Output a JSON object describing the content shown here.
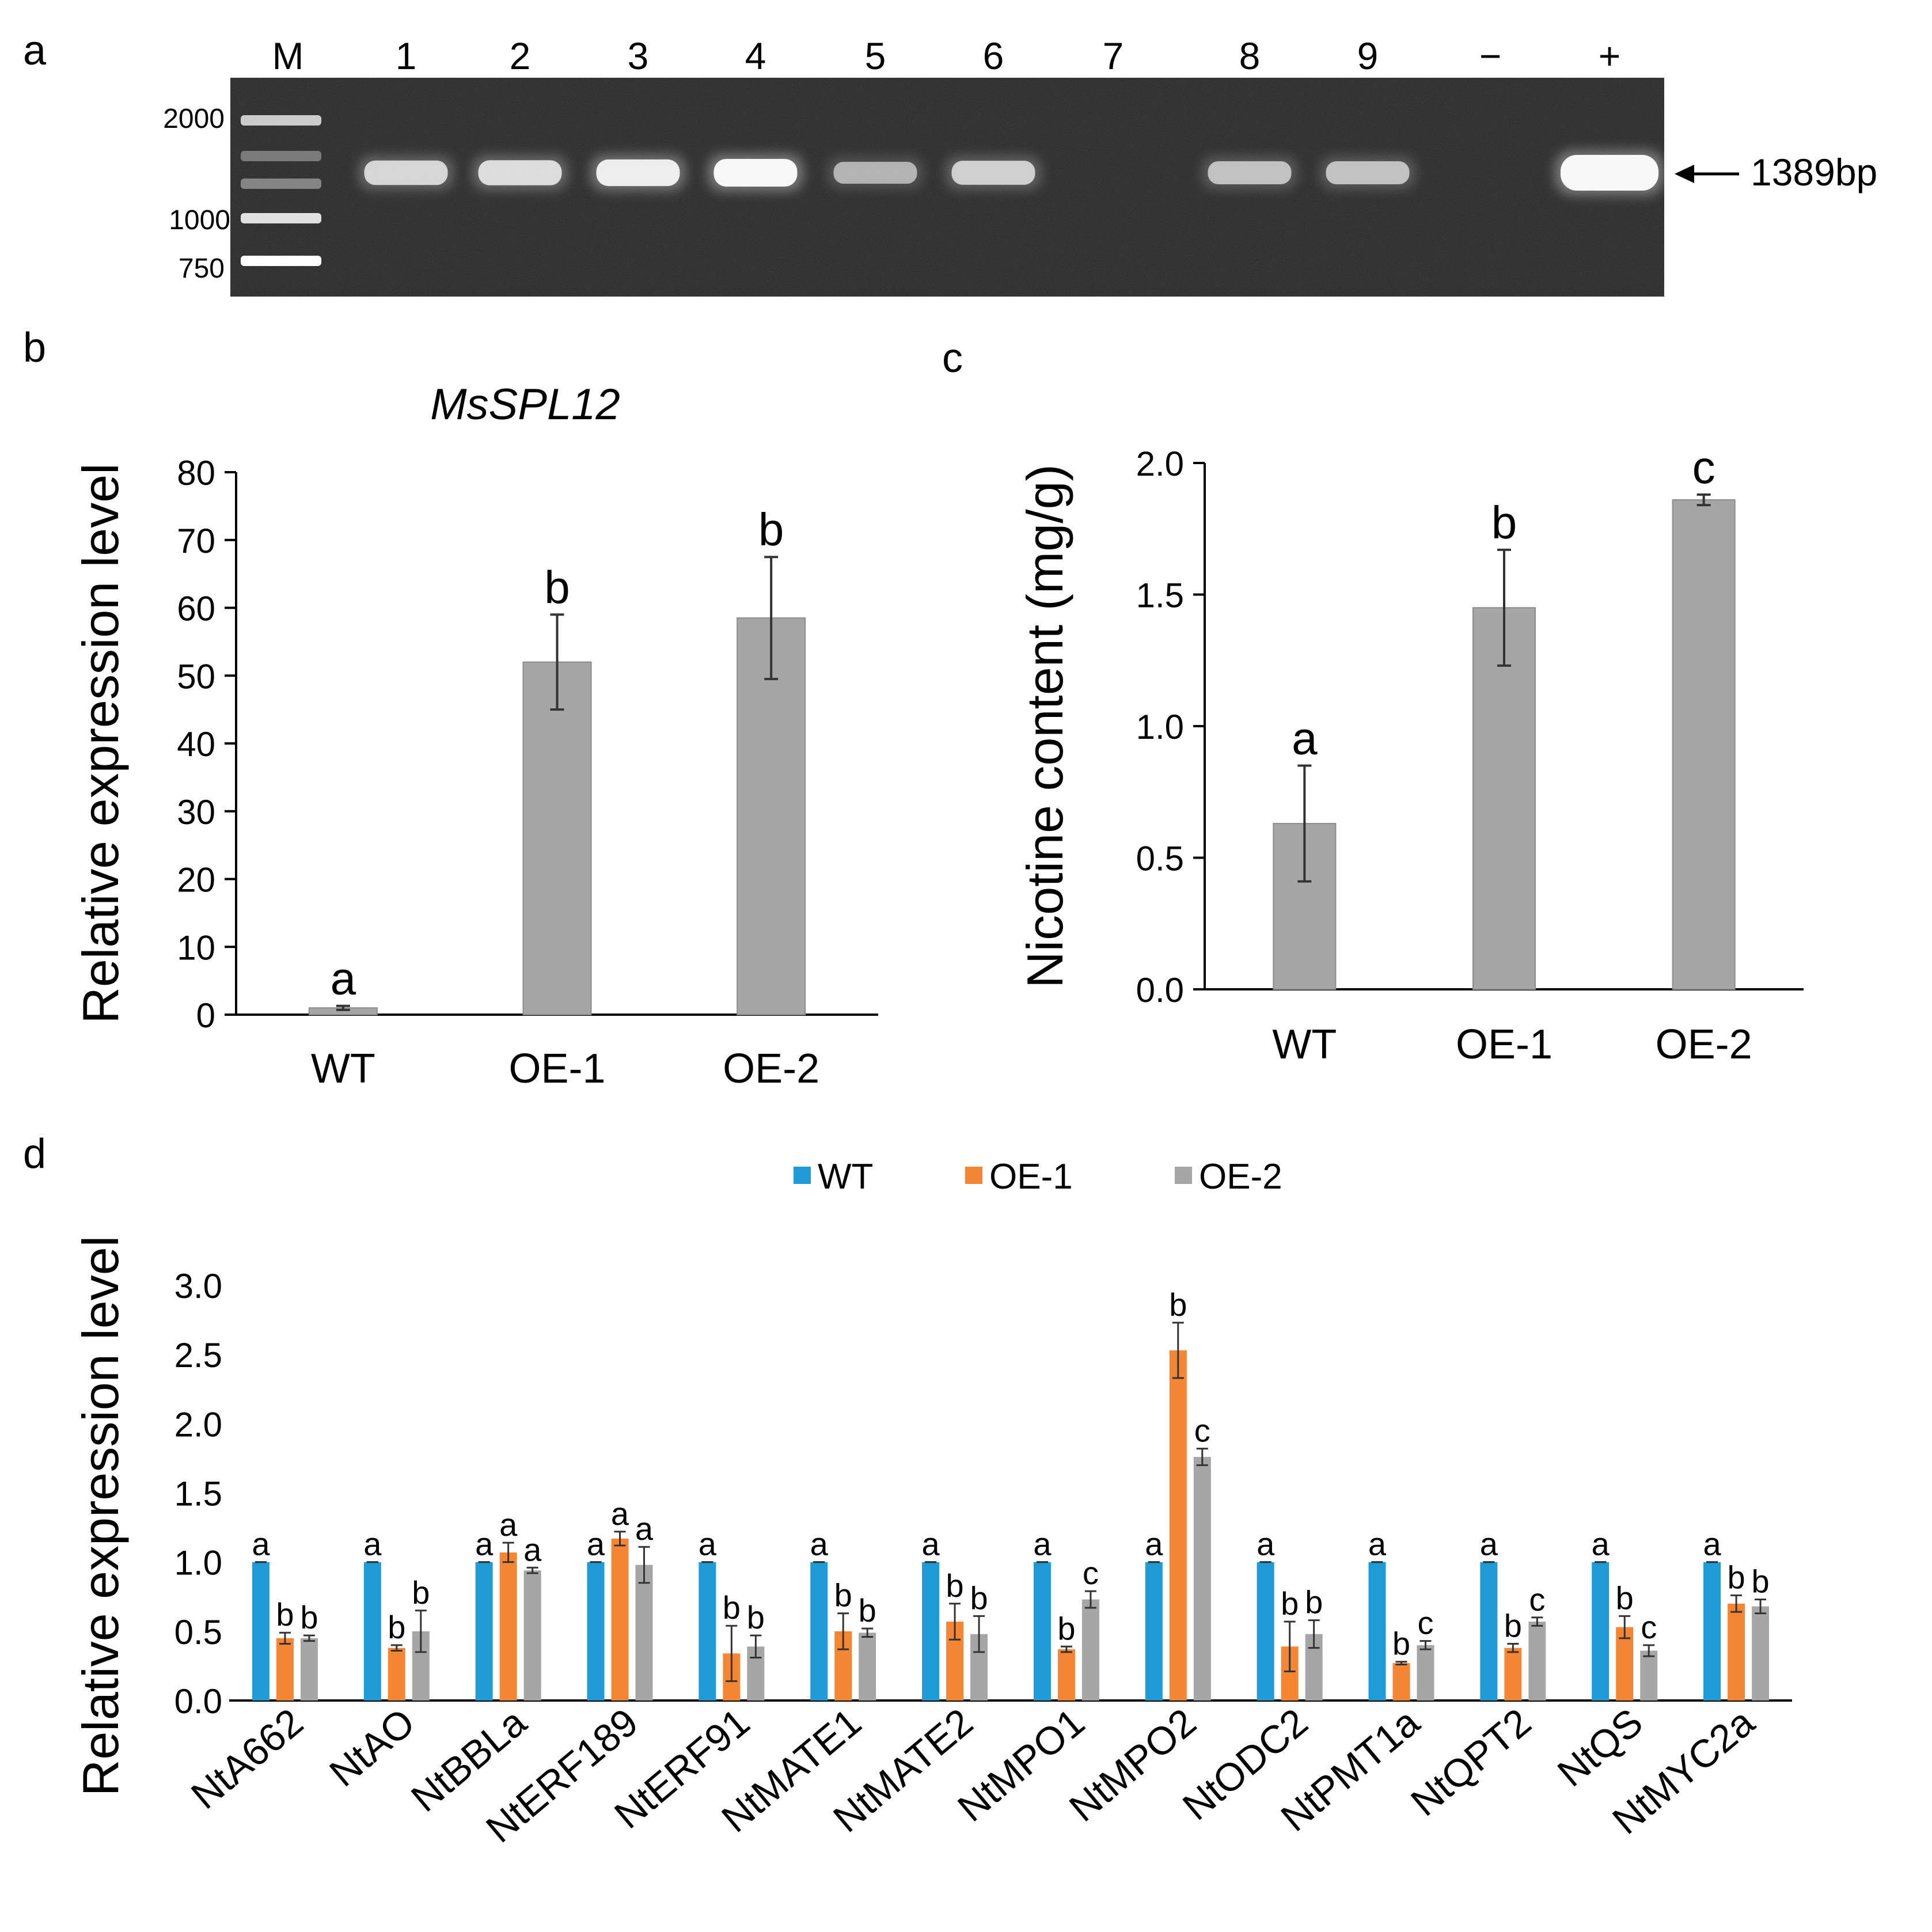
{
  "panel_labels": {
    "a": "a",
    "b": "b",
    "c": "c",
    "d": "d"
  },
  "gel": {
    "lanes": [
      "M",
      "1",
      "2",
      "3",
      "4",
      "5",
      "6",
      "7",
      "8",
      "9",
      "−",
      "+"
    ],
    "ladder_labels": [
      "2000",
      "1000",
      "750"
    ],
    "band_annotation": "1389bp",
    "band_intensity": [
      0,
      0.7,
      0.75,
      0.9,
      1.0,
      0.45,
      0.65,
      0,
      0.55,
      0.55,
      0,
      1.0
    ]
  },
  "chart_data": [
    {
      "type": "bar",
      "panel": "b",
      "title": "MsSPL12",
      "xlabel": "",
      "ylabel": "Relative expression level",
      "categories": [
        "WT",
        "OE-1",
        "OE-2"
      ],
      "values": [
        1,
        52,
        58.5
      ],
      "errors": [
        0.3,
        7,
        9
      ],
      "significance": [
        "a",
        "b",
        "b"
      ],
      "ylim": [
        0,
        80
      ],
      "yticks": [
        "0",
        "10",
        "20",
        "30",
        "40",
        "50",
        "60",
        "70",
        "80"
      ],
      "color": "#a6a6a6"
    },
    {
      "type": "bar",
      "panel": "c",
      "title": "",
      "xlabel": "",
      "ylabel": "Nicotine content (mg/g)",
      "categories": [
        "WT",
        "OE-1",
        "OE-2"
      ],
      "values": [
        0.63,
        1.45,
        1.86
      ],
      "errors": [
        0.22,
        0.22,
        0.02
      ],
      "significance": [
        "a",
        "b",
        "c"
      ],
      "ylim": [
        0,
        2
      ],
      "yticks": [
        "0.0",
        "0.5",
        "1.0",
        "1.5",
        "2.0"
      ],
      "color": "#a6a6a6"
    },
    {
      "type": "bar",
      "panel": "d",
      "title": "",
      "xlabel": "",
      "ylabel": "Relative expression level",
      "categories": [
        "NtA662",
        "NtAO",
        "NtBBLa",
        "NtERF189",
        "NtERF91",
        "NtMATE1",
        "NtMATE2",
        "NtMPO1",
        "NtMPO2",
        "NtODC2",
        "NtPMT1a",
        "NtQPT2",
        "NtQS",
        "NtMYC2a"
      ],
      "ylim": [
        0,
        3
      ],
      "yticks": [
        "0.0",
        "0.5",
        "1.0",
        "1.5",
        "2.0",
        "2.5",
        "3.0"
      ],
      "legend_position": "top-center",
      "series": [
        {
          "name": "WT",
          "color": "#1f9cd8",
          "values": [
            1,
            1,
            1,
            1,
            1,
            1,
            1,
            1,
            1,
            1,
            1,
            1,
            1,
            1
          ],
          "errors": [
            0,
            0,
            0,
            0,
            0,
            0,
            0,
            0,
            0,
            0,
            0,
            0,
            0,
            0
          ],
          "significance": [
            "a",
            "a",
            "a",
            "a",
            "a",
            "a",
            "a",
            "a",
            "a",
            "a",
            "a",
            "a",
            "a",
            "a"
          ]
        },
        {
          "name": "OE-1",
          "color": "#f58634",
          "values": [
            0.45,
            0.38,
            1.07,
            1.17,
            0.34,
            0.5,
            0.57,
            0.37,
            2.53,
            0.39,
            0.27,
            0.38,
            0.53,
            0.7
          ],
          "errors": [
            0.04,
            0.02,
            0.07,
            0.05,
            0.2,
            0.13,
            0.13,
            0.02,
            0.2,
            0.18,
            0.01,
            0.03,
            0.08,
            0.06
          ],
          "significance": [
            "b",
            "b",
            "a",
            "a",
            "b",
            "b",
            "b",
            "b",
            "b",
            "b",
            "b",
            "b",
            "b",
            "b"
          ]
        },
        {
          "name": "OE-2",
          "color": "#a6a6a6",
          "values": [
            0.45,
            0.5,
            0.94,
            0.98,
            0.39,
            0.49,
            0.48,
            0.73,
            1.76,
            0.48,
            0.4,
            0.57,
            0.36,
            0.68
          ],
          "errors": [
            0.02,
            0.15,
            0.02,
            0.13,
            0.08,
            0.03,
            0.13,
            0.06,
            0.06,
            0.1,
            0.03,
            0.03,
            0.04,
            0.05
          ],
          "significance": [
            "b",
            "b",
            "a",
            "a",
            "b",
            "b",
            "b",
            "c",
            "c",
            "b",
            "c",
            "c",
            "c",
            "b"
          ]
        }
      ]
    }
  ]
}
